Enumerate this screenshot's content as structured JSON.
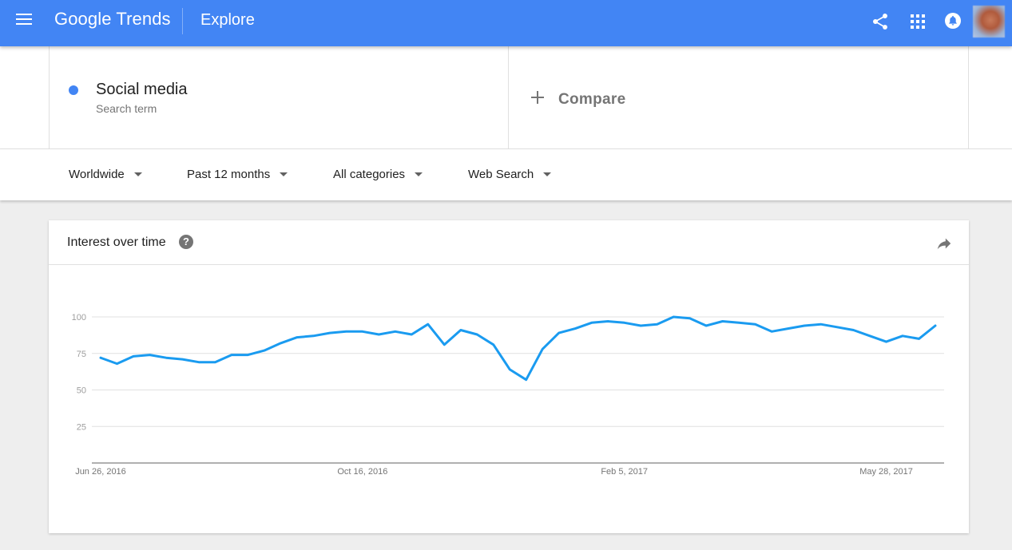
{
  "header": {
    "logo_google": "Google",
    "logo_trends": "Trends",
    "section": "Explore"
  },
  "term": {
    "name": "Social media",
    "type": "Search term",
    "color": "#4285f4"
  },
  "compare": {
    "label": "Compare"
  },
  "filters": {
    "region": "Worldwide",
    "period": "Past 12 months",
    "category": "All categories",
    "property": "Web Search"
  },
  "card": {
    "title": "Interest over time",
    "help_icon": "?"
  },
  "chart_data": {
    "type": "line",
    "title": "Interest over time",
    "xlabel": "",
    "ylabel": "",
    "ylim": [
      0,
      100
    ],
    "yticks": [
      25,
      50,
      75,
      100
    ],
    "x_tick_labels": [
      "Jun 26, 2016",
      "Oct 16, 2016",
      "Feb 5, 2017",
      "May 28, 2017"
    ],
    "x_tick_index": [
      0,
      16,
      32,
      48
    ],
    "grid": true,
    "line_color": "#1a9bf0",
    "series": [
      {
        "values": [
          72,
          68,
          73,
          74,
          72,
          71,
          69,
          69,
          74,
          74,
          77,
          82,
          86,
          87,
          89,
          90,
          90,
          88,
          90,
          88,
          95,
          81,
          91,
          88,
          81,
          64,
          57,
          78,
          89,
          92,
          96,
          97,
          96,
          94,
          95,
          100,
          99,
          94,
          97,
          96,
          95,
          90,
          92,
          94,
          95,
          93,
          91,
          87,
          83,
          87,
          85,
          94
        ]
      }
    ]
  }
}
